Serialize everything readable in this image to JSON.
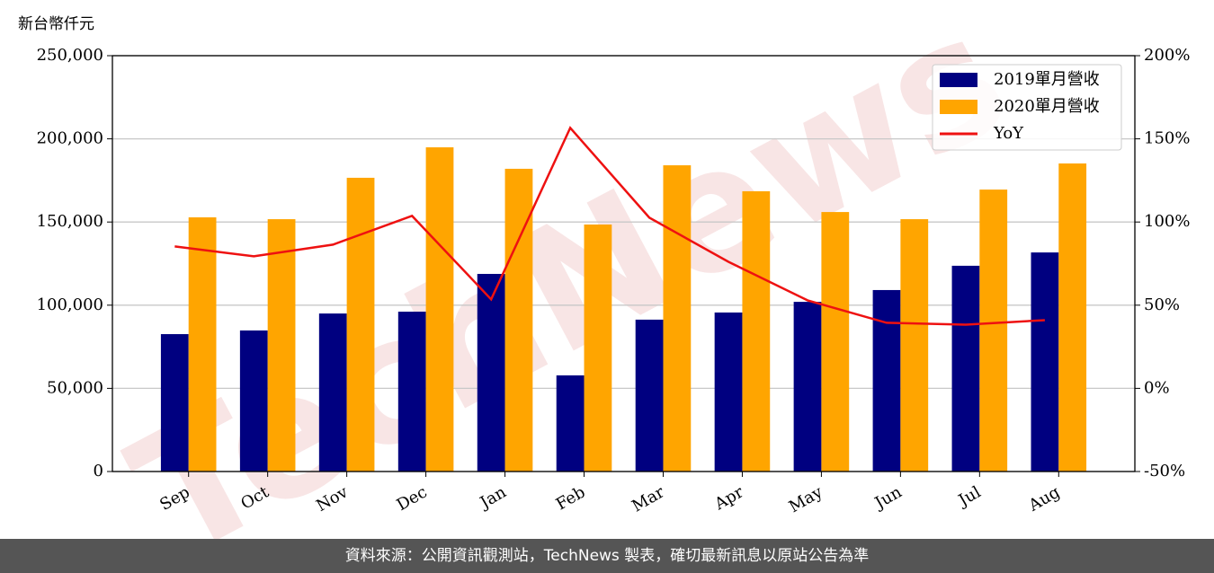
{
  "chart_data": {
    "type": "bar-line",
    "watermark": "TechNews",
    "y_label": "新台幣仟元",
    "source": "資料來源：公開資訊觀測站，TechNews 製表，確切最新訊息以原站公告為準",
    "categories": [
      "Sep",
      "Oct",
      "Nov",
      "Dec",
      "Jan",
      "Feb",
      "Mar",
      "Apr",
      "May",
      "Jun",
      "Jul",
      "Aug"
    ],
    "series": [
      {
        "name": "2019單月營收",
        "color": "#000080",
        "type": "bar",
        "values": [
          82600,
          84800,
          95000,
          96100,
          118800,
          57800,
          91300,
          95600,
          102000,
          109100,
          123700,
          131700
        ]
      },
      {
        "name": "2020單月營收",
        "color": "#ffa500",
        "type": "bar",
        "values": [
          152800,
          151700,
          176600,
          194900,
          182000,
          148500,
          184100,
          168500,
          156000,
          151700,
          169500,
          185200
        ]
      },
      {
        "name": "YoY",
        "color": "#ee1111",
        "type": "line",
        "axis": "y2",
        "values": [
          85.3,
          79.4,
          86.4,
          103.7,
          53.5,
          156.6,
          102.6,
          76.1,
          52.9,
          39.4,
          38.3,
          41.0
        ]
      }
    ],
    "ylim": [
      0,
      250000
    ],
    "yticks": [
      0,
      {
        "value": 50000,
        "label": "50,000"
      },
      {
        "value": 100000,
        "label": "100,000"
      },
      {
        "value": 150000,
        "label": "150,000"
      },
      {
        "value": 200000,
        "label": "200,000"
      },
      {
        "value": 250000,
        "label": "250,000"
      }
    ],
    "y2lim": [
      -50,
      200
    ],
    "y2ticks": [
      {
        "value": -50,
        "label": "-50%"
      },
      {
        "value": 0,
        "label": "0%"
      },
      {
        "value": 50,
        "label": "50%"
      },
      {
        "value": 100,
        "label": "100%"
      },
      {
        "value": 150,
        "label": "150%"
      },
      {
        "value": 200,
        "label": "200%"
      }
    ],
    "grid": true,
    "legend": "upper right"
  }
}
